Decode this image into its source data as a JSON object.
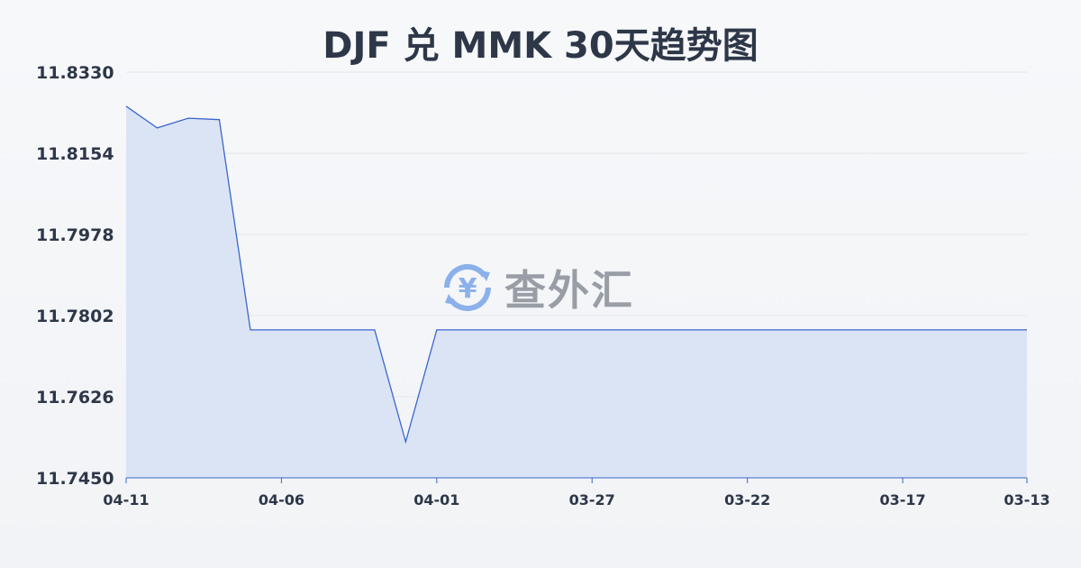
{
  "chart_data": {
    "type": "area",
    "title": "DJF 兑 MMK 30天趋势图",
    "xlabel": "",
    "ylabel": "",
    "x": [
      "04-11",
      "04-10",
      "04-09",
      "04-08",
      "04-07",
      "04-06",
      "04-05",
      "04-04",
      "04-03",
      "04-02",
      "04-01",
      "03-31",
      "03-30",
      "03-29",
      "03-28",
      "03-27",
      "03-26",
      "03-25",
      "03-24",
      "03-23",
      "03-22",
      "03-21",
      "03-20",
      "03-19",
      "03-18",
      "03-17",
      "03-16",
      "03-15",
      "03-14",
      "03-13"
    ],
    "values": [
      11.8256,
      11.8209,
      11.823,
      11.8227,
      11.7771,
      11.7771,
      11.7771,
      11.7771,
      11.7771,
      11.7528,
      11.7771,
      11.7771,
      11.7771,
      11.7771,
      11.7771,
      11.7771,
      11.7771,
      11.7771,
      11.7771,
      11.7771,
      11.7771,
      11.7771,
      11.7771,
      11.7771,
      11.7771,
      11.7771,
      11.7771,
      11.7771,
      11.7771,
      11.7771
    ],
    "x_tick_labels": [
      "04-11",
      "04-06",
      "04-01",
      "03-27",
      "03-22",
      "03-17",
      "03-13"
    ],
    "y_tick_labels": [
      "11.8330",
      "11.8154",
      "11.7978",
      "11.7802",
      "11.7626",
      "11.7450"
    ],
    "ylim": [
      11.745,
      11.833
    ],
    "grid": true,
    "line_color": "#3a66cc",
    "fill_color": "#d6e0f5"
  },
  "watermark": {
    "text": "查外汇",
    "icon": "yen-exchange-icon",
    "color": "#7aa6e8"
  }
}
